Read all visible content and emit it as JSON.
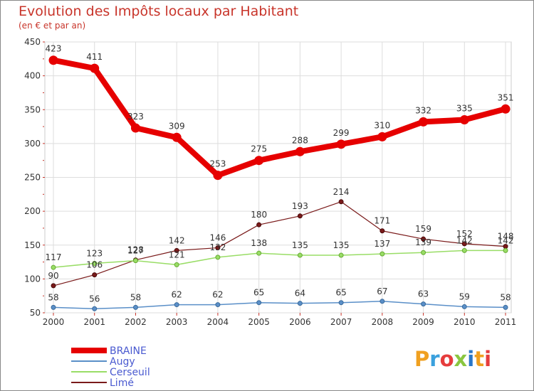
{
  "chart_data": {
    "type": "line",
    "title": "Evolution des Impôts locaux par Habitant",
    "subtitle": "(en € et par an)",
    "xlabel": "",
    "ylabel": "",
    "ylim": [
      50,
      450
    ],
    "yticks": [
      50,
      100,
      150,
      200,
      250,
      300,
      350,
      400,
      450
    ],
    "categories": [
      "2000",
      "2001",
      "2002",
      "2003",
      "2004",
      "2005",
      "2006",
      "2007",
      "2008",
      "2009",
      "2010",
      "2011"
    ],
    "series": [
      {
        "name": "BRAINE",
        "color": "#e60000",
        "width": 8,
        "marker": 6,
        "values": [
          423,
          411,
          323,
          309,
          253,
          275,
          288,
          299,
          310,
          332,
          335,
          351
        ]
      },
      {
        "name": "Augy",
        "color": "#5a8fc8",
        "width": 1.5,
        "marker": 3,
        "values": [
          58,
          56,
          58,
          62,
          62,
          65,
          64,
          65,
          67,
          63,
          59,
          58
        ]
      },
      {
        "name": "Cerseuil",
        "color": "#99dd66",
        "width": 1.5,
        "marker": 3,
        "values": [
          117,
          123,
          127,
          121,
          132,
          138,
          135,
          135,
          137,
          139,
          142,
          142
        ]
      },
      {
        "name": "Limé",
        "color": "#7a1a1a",
        "width": 1.2,
        "marker": 3,
        "values": [
          90,
          106,
          128,
          142,
          146,
          180,
          193,
          214,
          171,
          159,
          152,
          148
        ]
      }
    ],
    "legend_position": "bottom-left",
    "grid": true
  },
  "brand": {
    "logo_text": "Proxiti"
  }
}
